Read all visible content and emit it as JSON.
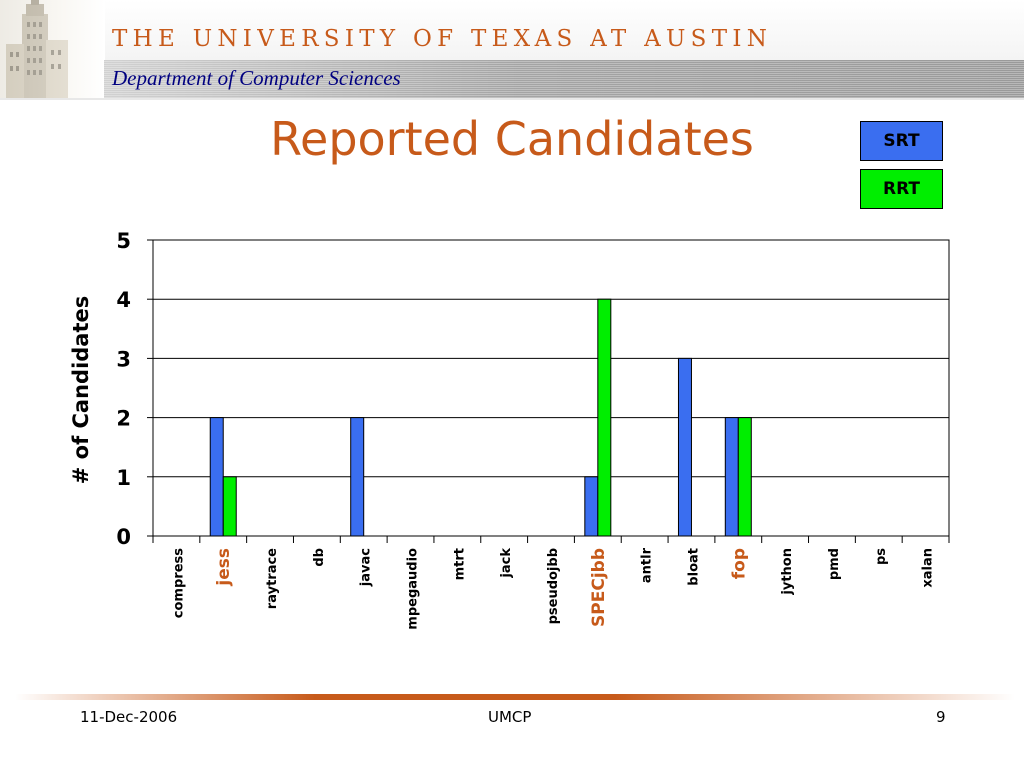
{
  "header": {
    "university": "THE UNIVERSITY OF TEXAS AT AUSTIN",
    "department": "Department of Computer Sciences"
  },
  "title": "Reported Candidates",
  "legend": [
    {
      "name": "SRT",
      "color": "#3a6ef0"
    },
    {
      "name": "RRT",
      "color": "#00ee00"
    }
  ],
  "chart_data": {
    "type": "bar",
    "title": "Reported Candidates",
    "xlabel": "",
    "ylabel": "# of Candidates",
    "ylim": [
      0,
      5
    ],
    "yticks": [
      "0",
      "1",
      "2",
      "3",
      "4",
      "5"
    ],
    "grid": true,
    "legend_placement": "top-right",
    "categories": [
      "compress",
      "jess",
      "raytrace",
      "db",
      "javac",
      "mpegaudio",
      "mtrt",
      "jack",
      "pseudojbb",
      "SPECjbb",
      "antlr",
      "bloat",
      "fop",
      "jython",
      "pmd",
      "ps",
      "xalan"
    ],
    "highlighted_categories": [
      "jess",
      "SPECjbb",
      "fop"
    ],
    "highlight_color": "#c75a1a",
    "series": [
      {
        "name": "SRT",
        "color": "#3a6ef0",
        "values": [
          0,
          2,
          0,
          0,
          2,
          0,
          0,
          0,
          0,
          1,
          0,
          3,
          2,
          0,
          0,
          0,
          0
        ]
      },
      {
        "name": "RRT",
        "color": "#00ee00",
        "values": [
          0,
          1,
          0,
          0,
          0,
          0,
          0,
          0,
          0,
          4,
          0,
          0,
          2,
          0,
          0,
          0,
          0
        ]
      }
    ]
  },
  "footer": {
    "date": "11-Dec-2006",
    "center": "UMCP",
    "page": "9"
  }
}
